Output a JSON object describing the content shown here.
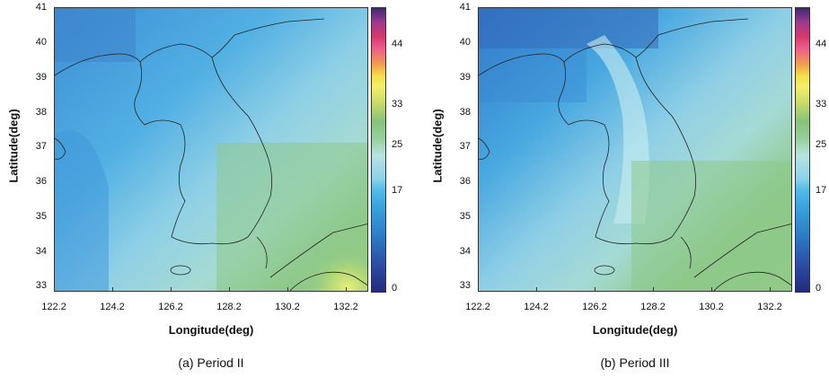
{
  "panels": [
    {
      "caption": "(a) Period II",
      "xlabel": "Longitude(deg)",
      "ylabel": "Latitude(deg)",
      "xticks": [
        "122.2",
        "124.2",
        "126.2",
        "128.2",
        "130.2",
        "132.2"
      ],
      "yticks": [
        "41",
        "40",
        "39",
        "38",
        "37",
        "36",
        "35",
        "34",
        "33"
      ],
      "colorbar_labels": [
        "44",
        "33",
        "25",
        "17",
        "0"
      ]
    },
    {
      "caption": "(b) Period III",
      "xlabel": "Longitude(deg)",
      "ylabel": "Latitude(deg)",
      "xticks": [
        "122.2",
        "124.2",
        "126.2",
        "128.2",
        "130.2",
        "132.2"
      ],
      "yticks": [
        "41",
        "40",
        "39",
        "38",
        "37",
        "36",
        "35",
        "34",
        "33"
      ],
      "colorbar_labels": [
        "44",
        "33",
        "25",
        "17",
        "0"
      ]
    }
  ],
  "colors": {
    "sea_deep": "#3a8fd6",
    "sea_mid": "#57b3e4",
    "land_light": "#a9dde6",
    "land_green": "#8cc98a",
    "hot_yellow": "#dce76a"
  }
}
